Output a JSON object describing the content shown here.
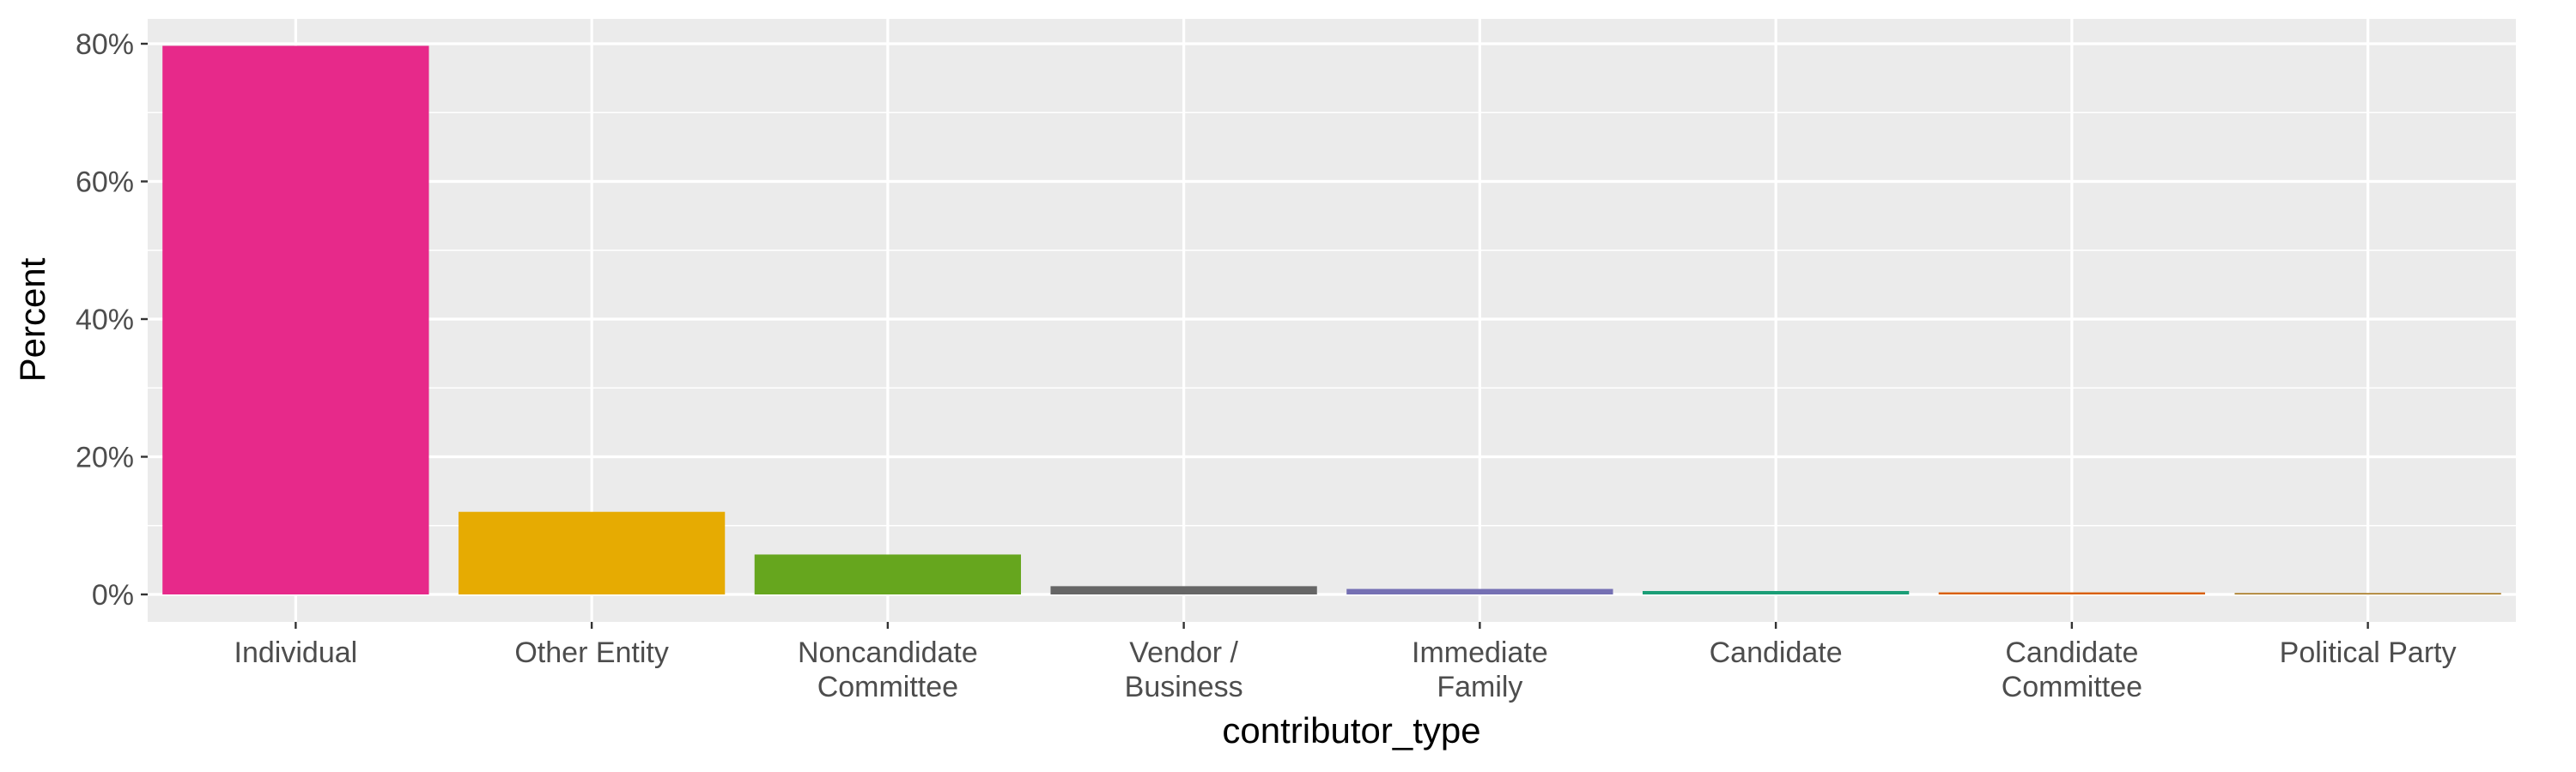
{
  "chart_data": {
    "type": "bar",
    "title": "",
    "xlabel": "contributor_type",
    "ylabel": "Percent",
    "ylim": [
      0,
      0.84
    ],
    "yticks": [
      {
        "value": 0,
        "label": "0%"
      },
      {
        "value": 0.2,
        "label": "20%"
      },
      {
        "value": 0.4,
        "label": "40%"
      },
      {
        "value": 0.6,
        "label": "60%"
      },
      {
        "value": 0.8,
        "label": "80%"
      }
    ],
    "categories": [
      [
        "Individual"
      ],
      [
        "Other Entity"
      ],
      [
        "Noncandidate",
        "Committee"
      ],
      [
        "Vendor /",
        "Business"
      ],
      [
        "Immediate",
        "Family"
      ],
      [
        "Candidate"
      ],
      [
        "Candidate",
        "Committee"
      ],
      [
        "Political Party"
      ]
    ],
    "values": [
      0.797,
      0.12,
      0.058,
      0.012,
      0.008,
      0.005,
      0.003,
      0.002
    ],
    "colors": [
      "#E7298A",
      "#E6AB02",
      "#66A61E",
      "#666666",
      "#7570B3",
      "#1B9E77",
      "#D95F02",
      "#A6761D"
    ],
    "panel_background": "#EBEBEB",
    "grid": true,
    "legend": "none"
  }
}
